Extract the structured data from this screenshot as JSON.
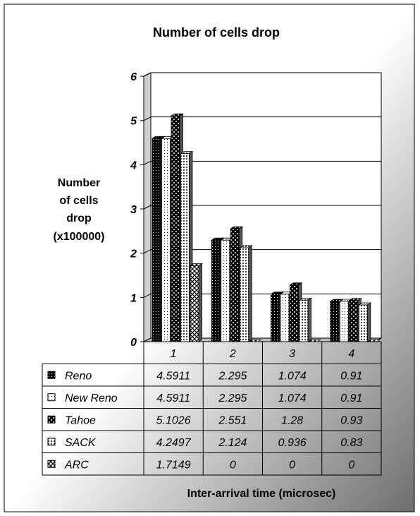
{
  "chart_data": {
    "type": "bar",
    "title": "Number of cells drop",
    "ylabel": [
      "Number",
      "of cells",
      "drop",
      "(x100000)"
    ],
    "xlabel": "Inter-arrival time (microsec)",
    "categories": [
      "1",
      "2",
      "3",
      "4"
    ],
    "ylim": [
      0,
      6
    ],
    "yticks": [
      "0",
      "1",
      "2",
      "3",
      "4",
      "5",
      "6"
    ],
    "grid": true,
    "series": [
      {
        "name": "Reno",
        "values": [
          4.5911,
          2.295,
          1.074,
          0.91
        ],
        "labels": [
          "4.5911",
          "2.295",
          "1.074",
          "0.91"
        ],
        "pattern": "black-dots",
        "color": "#000000"
      },
      {
        "name": "New Reno",
        "values": [
          4.5911,
          2.295,
          1.074,
          0.91
        ],
        "labels": [
          "4.5911",
          "2.295",
          "1.074",
          "0.91"
        ],
        "pattern": "white-dots",
        "color": "#ffffff"
      },
      {
        "name": "Tahoe",
        "values": [
          5.1026,
          2.551,
          1.28,
          0.93
        ],
        "labels": [
          "5.1026",
          "2.551",
          "1.28",
          "0.93"
        ],
        "pattern": "dark-checker",
        "color": "#1a1a1a"
      },
      {
        "name": "SACK",
        "values": [
          4.2497,
          2.124,
          0.936,
          0.83
        ],
        "labels": [
          "4.2497",
          "2.124",
          "0.936",
          "0.83"
        ],
        "pattern": "light-dots",
        "color": "#e0e0e0"
      },
      {
        "name": "ARC",
        "values": [
          1.7149,
          0,
          0,
          0
        ],
        "labels": [
          "1.7149",
          "0",
          "0",
          "0"
        ],
        "pattern": "cross-hatch",
        "color": "#909090"
      }
    ]
  }
}
